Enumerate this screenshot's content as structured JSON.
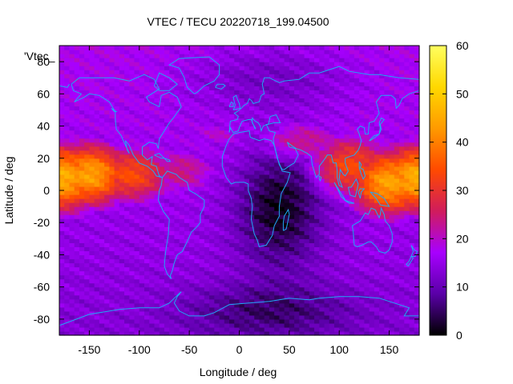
{
  "chart_data": {
    "type": "heatmap",
    "title": "VTEC / TECU 20220718_199.04500",
    "xlabel": "Longitude / deg",
    "ylabel": "Latitude / deg",
    "key_label": "'Vtec_",
    "xlim": [
      -180,
      180
    ],
    "ylim": [
      -90,
      90
    ],
    "xticks": [
      -150,
      -100,
      -50,
      0,
      50,
      100,
      150
    ],
    "yticks": [
      -80,
      -60,
      -40,
      -20,
      0,
      20,
      40,
      60,
      80
    ],
    "colorbar": {
      "range": [
        0,
        60
      ],
      "ticks": [
        0,
        10,
        20,
        30,
        40,
        50,
        60
      ],
      "palette": [
        "#000000",
        "#5a00a8",
        "#a800ff",
        "#d01c5c",
        "#ff4a00",
        "#ff9a00",
        "#ffd800",
        "#ffff60"
      ]
    },
    "grid_step_deg": [
      5,
      2.5
    ],
    "field_model": {
      "background": [
        {
          "lon": 0,
          "lat": 80,
          "value": 10
        },
        {
          "lon": 0,
          "lat": -85,
          "value": 5
        }
      ],
      "crests": [
        {
          "lon": -180,
          "lat": 8,
          "value": 46,
          "lon_spread": 40,
          "lat_spread": 18
        },
        {
          "lon": -150,
          "lat": 10,
          "value": 44,
          "lon_spread": 35,
          "lat_spread": 17
        },
        {
          "lon": -110,
          "lat": 10,
          "value": 34,
          "lon_spread": 40,
          "lat_spread": 16
        },
        {
          "lon": 180,
          "lat": 8,
          "value": 46,
          "lon_spread": 40,
          "lat_spread": 18
        },
        {
          "lon": 150,
          "lat": 5,
          "value": 44,
          "lon_spread": 35,
          "lat_spread": 18
        },
        {
          "lon": 110,
          "lat": 15,
          "value": 34,
          "lon_spread": 40,
          "lat_spread": 18
        },
        {
          "lon": 60,
          "lat": 30,
          "value": 26,
          "lon_spread": 45,
          "lat_spread": 14
        },
        {
          "lon": -60,
          "lat": 12,
          "value": 24,
          "lon_spread": 40,
          "lat_spread": 15
        },
        {
          "lon": -20,
          "lat": 35,
          "value": 20,
          "lon_spread": 40,
          "lat_spread": 10
        }
      ],
      "troughs": [
        {
          "lon": 40,
          "lat": -10,
          "value": -14,
          "lon_spread": 30,
          "lat_spread": 25
        },
        {
          "lon": 30,
          "lat": -75,
          "value": -8,
          "lon_spread": 60,
          "lat_spread": 12
        },
        {
          "lon": 30,
          "lat": 70,
          "value": -6,
          "lon_spread": 60,
          "lat_spread": 15
        }
      ]
    },
    "overlay": "coastlines"
  }
}
